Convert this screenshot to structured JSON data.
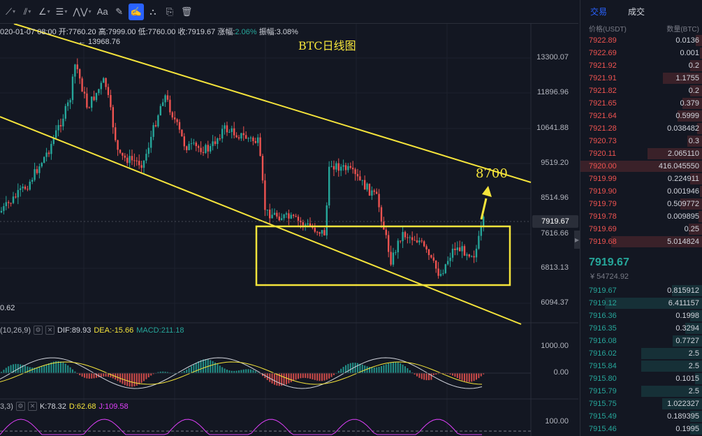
{
  "toolbar": {
    "tools": [
      {
        "name": "line-tool-icon",
        "glyph": "⟋"
      },
      {
        "name": "multiline-tool-icon",
        "glyph": "⫽"
      },
      {
        "name": "fib-tool-icon",
        "glyph": "∠"
      },
      {
        "name": "pattern-tool-icon",
        "glyph": "☰"
      },
      {
        "name": "wave-tool-icon",
        "glyph": "⋀⋁"
      },
      {
        "name": "text-tool-icon",
        "glyph": "Aa"
      },
      {
        "name": "ruler-icon",
        "glyph": "✎"
      },
      {
        "name": "brush-tool-icon",
        "glyph": "✍"
      },
      {
        "name": "magnet-icon",
        "glyph": "⛬"
      },
      {
        "name": "lock-icon",
        "glyph": "⎘"
      },
      {
        "name": "trash-icon",
        "glyph": "🗑"
      }
    ]
  },
  "ohlc": {
    "date": "020-01-07 08:00",
    "open_label": "开:",
    "open": "7760.20",
    "high_label": "高:",
    "high": "7999.00",
    "low_label": "低:",
    "low": "7760.00",
    "close_label": "收:",
    "close": "7919.67",
    "change_label": "涨幅:",
    "change": "2.06%",
    "amp_label": "振幅:",
    "amp": "3.08%"
  },
  "annotations": {
    "title": "BTC日线图",
    "target": "8700",
    "high_marker": "← 13968.76",
    "low_marker": "0.62"
  },
  "price_axis": {
    "ticks": [
      "13300.07",
      "11896.96",
      "10641.88",
      "9519.20",
      "8514.96",
      "7616.66",
      "6813.13",
      "6094.37"
    ],
    "last_price": "7919.67"
  },
  "macd": {
    "params": "(10,26,9)",
    "dif_label": "DIF:",
    "dif": "89.93",
    "dea_label": "DEA:",
    "dea": "-15.66",
    "macd_label": "MACD:",
    "macd": "211.18",
    "ticks": [
      "1000.00",
      "0.00"
    ]
  },
  "kdj": {
    "params": "3,3)",
    "k_label": "K:",
    "k": "78.32",
    "d_label": "D:",
    "d": "62.68",
    "j_label": "J:",
    "j": "109.58",
    "ticks": [
      "100.00"
    ]
  },
  "colors": {
    "up": "#26a69a",
    "down": "#ef5350",
    "annotation": "#f5e43b",
    "accent": "#2962ff",
    "background": "#131722"
  },
  "panel": {
    "tab_trade": "交易",
    "tab_deals": "成交",
    "col_price": "价格(USDT)",
    "col_qty": "数量(BTC)",
    "asks": [
      {
        "p": "7922.89",
        "q": "0.0136",
        "d": 0.05
      },
      {
        "p": "7922.69",
        "q": "0.001",
        "d": 0.02
      },
      {
        "p": "7921.92",
        "q": "0.2",
        "d": 0.1
      },
      {
        "p": "7921.91",
        "q": "1.1755",
        "d": 0.32
      },
      {
        "p": "7921.82",
        "q": "0.2",
        "d": 0.1
      },
      {
        "p": "7921.65",
        "q": "0.379",
        "d": 0.16
      },
      {
        "p": "7921.64",
        "q": "0.5999",
        "d": 0.2
      },
      {
        "p": "7921.28",
        "q": "0.038482",
        "d": 0.04
      },
      {
        "p": "7920.73",
        "q": "0.3",
        "d": 0.12
      },
      {
        "p": "7920.11",
        "q": "2.065110",
        "d": 0.45
      },
      {
        "p": "7920.00",
        "q": "416.045550",
        "d": 1.0
      },
      {
        "p": "7919.99",
        "q": "0.224911",
        "d": 0.1
      },
      {
        "p": "7919.90",
        "q": "0.001946",
        "d": 0.02
      },
      {
        "p": "7919.79",
        "q": "0.509772",
        "d": 0.18
      },
      {
        "p": "7919.78",
        "q": "0.009895",
        "d": 0.03
      },
      {
        "p": "7919.69",
        "q": "0.25",
        "d": 0.11
      },
      {
        "p": "7919.68",
        "q": "5.014824",
        "d": 0.75
      }
    ],
    "mid_price": "7919.67",
    "mid_sub": "¥ 54724.92",
    "bids": [
      {
        "p": "7919.67",
        "q": "0.815912",
        "d": 0.25
      },
      {
        "p": "7919.12",
        "q": "6.411157",
        "d": 0.8
      },
      {
        "p": "7916.36",
        "q": "0.1998",
        "d": 0.1
      },
      {
        "p": "7916.35",
        "q": "0.3294",
        "d": 0.14
      },
      {
        "p": "7916.08",
        "q": "0.7727",
        "d": 0.24
      },
      {
        "p": "7916.02",
        "q": "2.5",
        "d": 0.5
      },
      {
        "p": "7915.84",
        "q": "2.5",
        "d": 0.5
      },
      {
        "p": "7915.80",
        "q": "0.1015",
        "d": 0.06
      },
      {
        "p": "7915.79",
        "q": "2.5",
        "d": 0.5
      },
      {
        "p": "7915.75",
        "q": "1.022327",
        "d": 0.33
      },
      {
        "p": "7915.49",
        "q": "0.189395",
        "d": 0.1
      },
      {
        "p": "7915.46",
        "q": "0.1995",
        "d": 0.1
      }
    ]
  }
}
